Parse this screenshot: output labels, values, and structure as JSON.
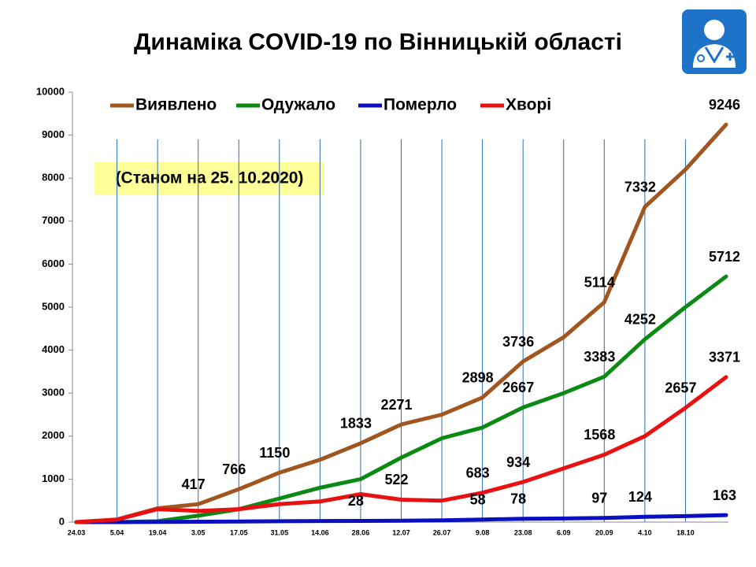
{
  "chart_data": {
    "type": "line",
    "title": "Динаміка COVID-19 по Вінницькій області",
    "subtitle": "(Станом на 25. 10.2020)",
    "categories": [
      "24.03",
      "5.04",
      "19.04",
      "3.05",
      "17.05",
      "31.05",
      "14.06",
      "28.06",
      "12.07",
      "26.07",
      "9.08",
      "23.08",
      "6.09",
      "20.09",
      "4.10",
      "18.10",
      null
    ],
    "series": [
      {
        "name": "Виявлено",
        "color": "#a0561e",
        "values": [
          0,
          60,
          320,
          417,
          766,
          1150,
          1450,
          1833,
          2271,
          2500,
          2898,
          3736,
          4300,
          5114,
          7332,
          8200,
          9246
        ],
        "value_labels": [
          null,
          null,
          null,
          "417",
          "766",
          "1150",
          null,
          "1833",
          "2271",
          null,
          "2898",
          "3736",
          null,
          "5114",
          "7332",
          null,
          "9246"
        ]
      },
      {
        "name": "Одужало",
        "color": "#0a8a12",
        "values": [
          0,
          0,
          20,
          150,
          300,
          550,
          800,
          1000,
          1500,
          1950,
          2200,
          2667,
          3000,
          3383,
          4252,
          5000,
          5712
        ],
        "value_labels": [
          null,
          null,
          null,
          null,
          null,
          null,
          null,
          null,
          null,
          null,
          null,
          "2667",
          null,
          "3383",
          "4252",
          null,
          "5712"
        ]
      },
      {
        "name": "Померло",
        "color": "#0a10c0",
        "values": [
          0,
          0,
          5,
          10,
          15,
          20,
          25,
          28,
          32,
          40,
          58,
          78,
          85,
          97,
          124,
          140,
          163
        ],
        "value_labels": [
          null,
          null,
          null,
          null,
          null,
          null,
          null,
          "28",
          null,
          null,
          "58",
          "78",
          null,
          "97",
          "124",
          null,
          "163"
        ]
      },
      {
        "name": "Хворі",
        "color": "#e81010",
        "values": [
          0,
          60,
          300,
          260,
          300,
          420,
          480,
          650,
          522,
          500,
          683,
          934,
          1250,
          1568,
          2000,
          2657,
          3371
        ],
        "value_labels": [
          null,
          null,
          null,
          null,
          null,
          null,
          null,
          null,
          "522",
          null,
          "683",
          "934",
          null,
          "1568",
          null,
          "2657",
          "3371"
        ]
      }
    ],
    "ylim": [
      0,
      10000
    ],
    "yticks": [
      0,
      1000,
      2000,
      3000,
      4000,
      5000,
      6000,
      7000,
      8000,
      9000,
      10000
    ],
    "grid": true
  }
}
